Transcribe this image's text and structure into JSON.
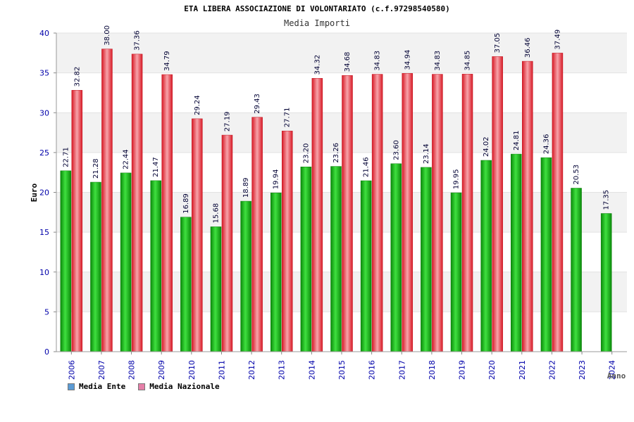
{
  "colors": {
    "ente": "#1fb81f",
    "nazionale": "#e8303a",
    "axis_text": "#0000aa",
    "band": "#f2f2f2",
    "legend_ente": "#5b9bd5",
    "legend_nazionale": "#e57fa8"
  },
  "chart_data": {
    "type": "bar",
    "title": "ETA LIBERA ASSOCIAZIONE DI VOLONTARIATO (c.f.97298540580)",
    "subtitle": "Media Importi",
    "xlabel": "Anno",
    "ylabel": "Euro",
    "ylim": [
      0,
      40
    ],
    "yticks": [
      0,
      5,
      10,
      15,
      20,
      25,
      30,
      35,
      40
    ],
    "categories": [
      "2006",
      "2007",
      "2008",
      "2009",
      "2010",
      "2011",
      "2012",
      "2013",
      "2014",
      "2015",
      "2016",
      "2017",
      "2018",
      "2019",
      "2020",
      "2021",
      "2022",
      "2023",
      "2024"
    ],
    "series": [
      {
        "name": "Media Ente",
        "values": [
          22.71,
          21.28,
          22.44,
          21.47,
          16.89,
          15.68,
          18.89,
          19.94,
          23.2,
          23.26,
          21.46,
          23.6,
          23.14,
          19.95,
          24.02,
          24.81,
          24.36,
          20.53,
          17.35
        ],
        "labels": [
          "22.71",
          "21.28",
          "22.44",
          "21.47",
          "16.89",
          "15.68",
          "18.89",
          "19.94",
          "23.20",
          "23.26",
          "21.46",
          "23.60",
          "23.14",
          "19.95",
          "24.02",
          "24.81",
          "24.36",
          "20.53",
          "17.35"
        ]
      },
      {
        "name": "Media Nazionale",
        "values": [
          32.82,
          38.0,
          37.36,
          34.79,
          29.24,
          27.19,
          29.43,
          27.71,
          34.32,
          34.68,
          34.83,
          34.94,
          34.83,
          34.85,
          37.05,
          36.46,
          37.49,
          null,
          null
        ],
        "labels": [
          "32.82",
          "38.00",
          "37.36",
          "34.79",
          "29.24",
          "27.19",
          "29.43",
          "27.71",
          "34.32",
          "34.68",
          "34.83",
          "34.94",
          "34.83",
          "34.85",
          "37.05",
          "36.46",
          "37.49",
          null,
          null
        ]
      }
    ],
    "grid": true,
    "legend": "bottom-left"
  }
}
